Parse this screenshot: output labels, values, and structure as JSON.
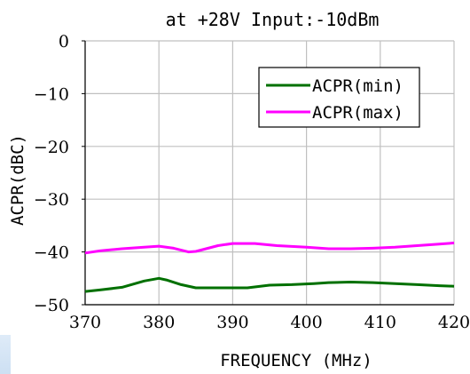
{
  "chart_data": {
    "type": "line",
    "title": "at +28V Input:-10dBm",
    "xlabel": "FREQUENCY (MHz)",
    "ylabel": "ACPR(dBC)",
    "xlim": [
      370,
      420
    ],
    "ylim": [
      -50,
      0
    ],
    "xticks": [
      370,
      380,
      390,
      400,
      410,
      420
    ],
    "yticks": [
      0,
      -10,
      -20,
      -30,
      -40,
      -50
    ],
    "grid": true,
    "legend_position": "top-right",
    "series": [
      {
        "name": "ACPR(min)",
        "color": "#007000",
        "x": [
          370,
          372,
          375,
          378,
          380,
          381,
          383,
          385,
          388,
          392,
          395,
          398,
          401,
          403,
          406,
          409,
          412,
          415,
          418,
          420
        ],
        "y": [
          -47.5,
          -47.2,
          -46.7,
          -45.5,
          -45.0,
          -45.3,
          -46.2,
          -46.8,
          -46.8,
          -46.8,
          -46.3,
          -46.2,
          -46.0,
          -45.8,
          -45.7,
          -45.8,
          -46.0,
          -46.2,
          -46.4,
          -46.5
        ]
      },
      {
        "name": "ACPR(max)",
        "color": "#ff00ff",
        "x": [
          370,
          372,
          375,
          378,
          380,
          382,
          384,
          385,
          388,
          390,
          393,
          396,
          400,
          403,
          406,
          409,
          412,
          415,
          418,
          420
        ],
        "y": [
          -40.2,
          -39.8,
          -39.4,
          -39.1,
          -38.9,
          -39.3,
          -40.0,
          -39.9,
          -38.8,
          -38.4,
          -38.4,
          -38.8,
          -39.1,
          -39.4,
          -39.4,
          -39.3,
          -39.1,
          -38.8,
          -38.5,
          -38.3
        ]
      }
    ]
  }
}
